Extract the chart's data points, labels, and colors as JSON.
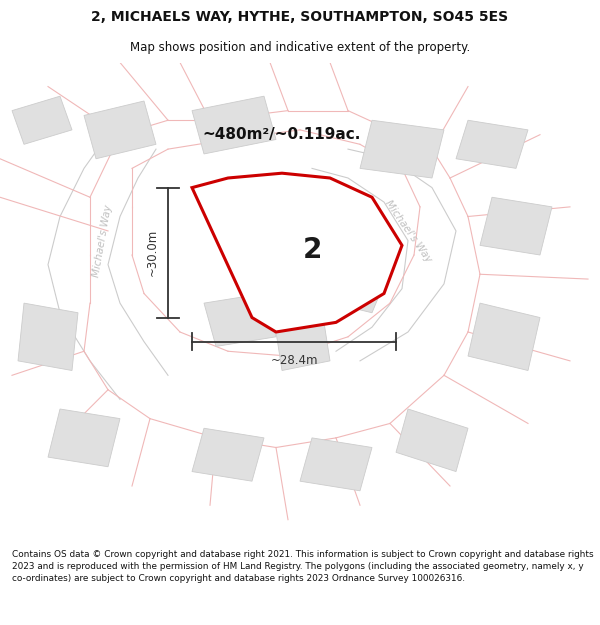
{
  "title_line1": "2, MICHAELS WAY, HYTHE, SOUTHAMPTON, SO45 5ES",
  "title_line2": "Map shows position and indicative extent of the property.",
  "area_label": "~480m²/~0.119ac.",
  "plot_number": "2",
  "dim_height": "~30.0m",
  "dim_width": "~28.4m",
  "road_label_left": "Michael's Way",
  "road_label_right": "Michael's Way",
  "footer_text": "Contains OS data © Crown copyright and database right 2021. This information is subject to Crown copyright and database rights 2023 and is reproduced with the permission of HM Land Registry. The polygons (including the associated geometry, namely x, y co-ordinates) are subject to Crown copyright and database rights 2023 Ordnance Survey 100026316.",
  "bg_color": "#ffffff",
  "map_bg": "#ffffff",
  "plot_fill": "#ffffff",
  "plot_edge": "#cc0000",
  "road_color": "#f0b8b8",
  "road_color2": "#cccccc",
  "building_fill": "#e0e0e0",
  "building_edge": "#cccccc",
  "dim_color": "#333333",
  "title_color": "#111111",
  "footer_color": "#111111",
  "road_text_color": "#c0c0c0"
}
